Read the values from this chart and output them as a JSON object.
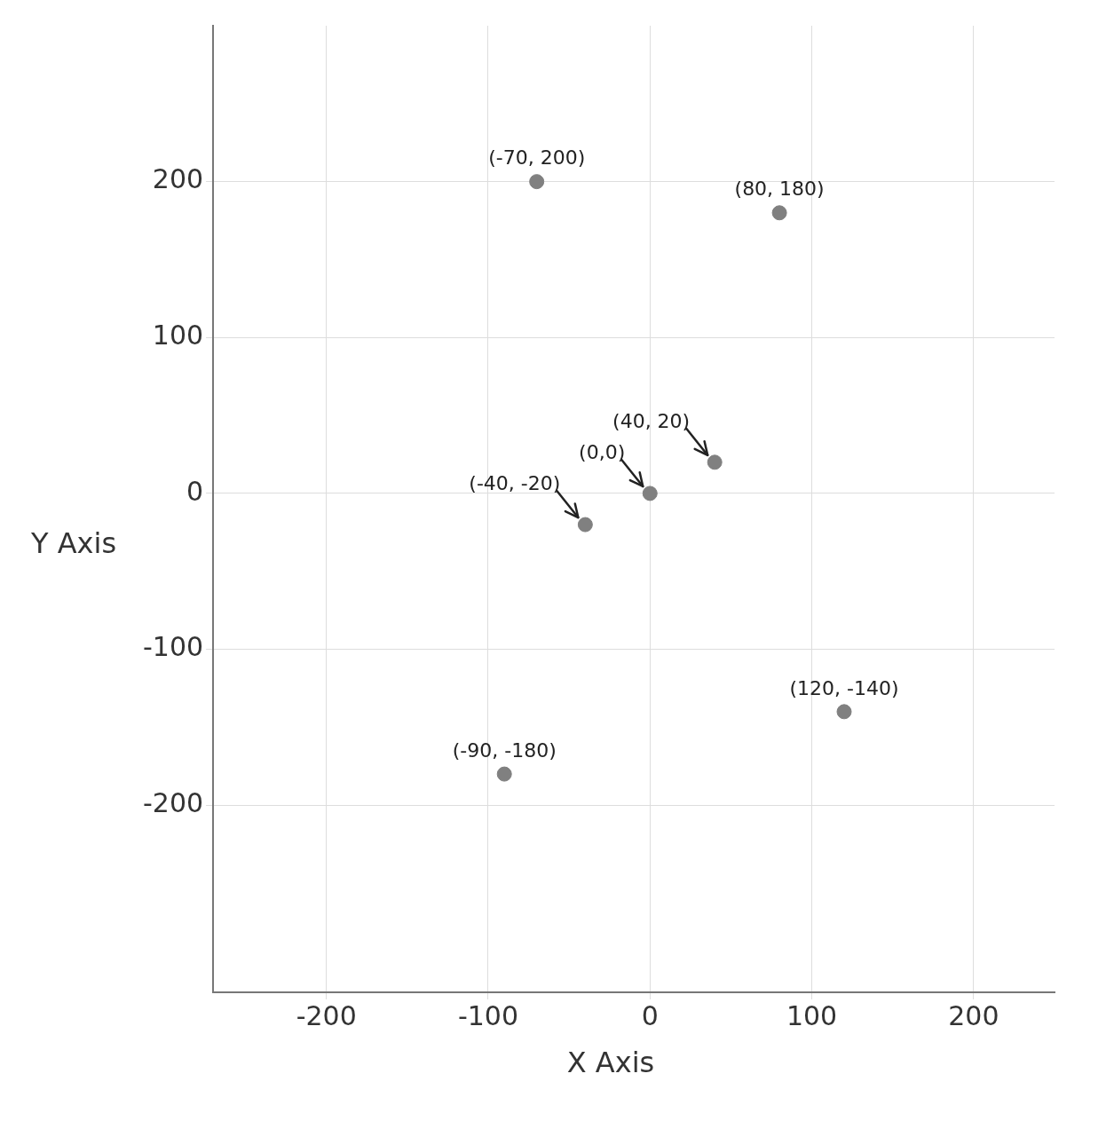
{
  "chart_data": {
    "type": "scatter",
    "xlabel": "X Axis",
    "ylabel": "Y Axis",
    "x": [
      -70,
      80,
      40,
      0,
      -40,
      120,
      -90
    ],
    "values": [
      200,
      180,
      20,
      0,
      -20,
      -140,
      -180
    ],
    "value_labels": [
      "(-70, 200)",
      "(80, 180)",
      null,
      null,
      null,
      "(120, -140)",
      "(-90, -180)"
    ],
    "annotations": [
      {
        "text": "(40, 20)",
        "x": 40,
        "y": 20
      },
      {
        "text": "(0,0)",
        "x": 0,
        "y": 0
      },
      {
        "text": "(-40, -20)",
        "x": -40,
        "y": -20
      }
    ],
    "color": "#808080",
    "marker": "circle",
    "grid": true,
    "xlim": [
      -270,
      250
    ],
    "xticks": [
      -200,
      -100,
      0,
      100,
      200
    ],
    "ylim": [
      -320,
      300
    ],
    "yticks": [
      -200,
      -100,
      0,
      100,
      200
    ]
  }
}
